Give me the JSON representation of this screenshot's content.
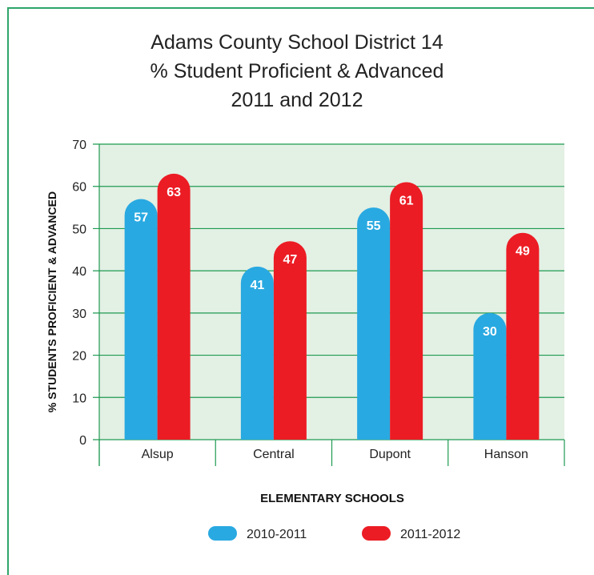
{
  "chart_data": {
    "type": "bar",
    "title_lines": [
      "Adams County School District 14",
      "% Student Proficient & Advanced",
      "2011 and 2012"
    ],
    "xlabel": "ELEMENTARY SCHOOLS",
    "ylabel": "% STUDENTS PROFICIENT & ADVANCED",
    "categories": [
      "Alsup",
      "Central",
      "Dupont",
      "Hanson"
    ],
    "series": [
      {
        "name": "2010-2011",
        "values": [
          57,
          41,
          55,
          30
        ],
        "color": "#29a9e1"
      },
      {
        "name": "2011-2012",
        "values": [
          63,
          47,
          61,
          49
        ],
        "color": "#ec1c24"
      }
    ],
    "ylim": [
      0,
      70
    ],
    "yticks": [
      0,
      10,
      20,
      30,
      40,
      50,
      60,
      70
    ],
    "grid": true,
    "plot_background": "#e3f0e4",
    "grid_color": "#1f9a52",
    "legend_position": "bottom"
  }
}
